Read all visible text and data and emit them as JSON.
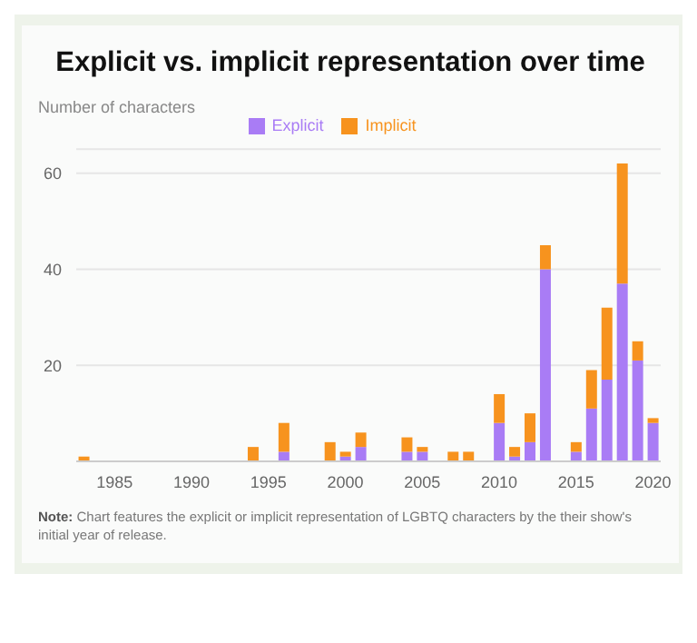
{
  "chart_data": {
    "type": "bar",
    "title": "Explicit vs. implicit representation over time",
    "ylabel": "Number of characters",
    "categories": [
      null,
      null,
      "1985",
      null,
      null,
      null,
      null,
      "1990",
      null,
      null,
      null,
      null,
      "1995",
      null,
      null,
      null,
      null,
      "2000",
      null,
      null,
      null,
      null,
      "2005",
      null,
      null,
      null,
      null,
      "2010",
      null,
      null,
      null,
      null,
      "2015",
      null,
      null,
      null,
      null,
      "2020"
    ],
    "series": [
      {
        "name": "Explicit",
        "color": "#a97cf5",
        "values": [
          0,
          0,
          0,
          0,
          0,
          0,
          0,
          0,
          0,
          0,
          0,
          0,
          0,
          2,
          0,
          0,
          0,
          1,
          3,
          0,
          0,
          2,
          2,
          0,
          0,
          0,
          0,
          8,
          1,
          4,
          40,
          0,
          2,
          11,
          17,
          37,
          21,
          8
        ]
      },
      {
        "name": "Implicit",
        "color": "#f7931e",
        "values": [
          1,
          0,
          0,
          0,
          0,
          0,
          0,
          0,
          0,
          0,
          0,
          3,
          0,
          6,
          0,
          0,
          4,
          1,
          3,
          0,
          0,
          3,
          1,
          0,
          2,
          2,
          0,
          6,
          2,
          6,
          5,
          0,
          2,
          8,
          15,
          25,
          4,
          1
        ]
      }
    ],
    "stacked": true,
    "ylim": [
      0,
      65
    ],
    "yticks": [
      {
        "value": 0,
        "label": null
      },
      20,
      40,
      60
    ],
    "grid": "y",
    "legend": "top",
    "annotations": [
      "Note: Chart features the explicit or implicit representation of LGBTQ characters by the their show's initial year of release."
    ]
  }
}
